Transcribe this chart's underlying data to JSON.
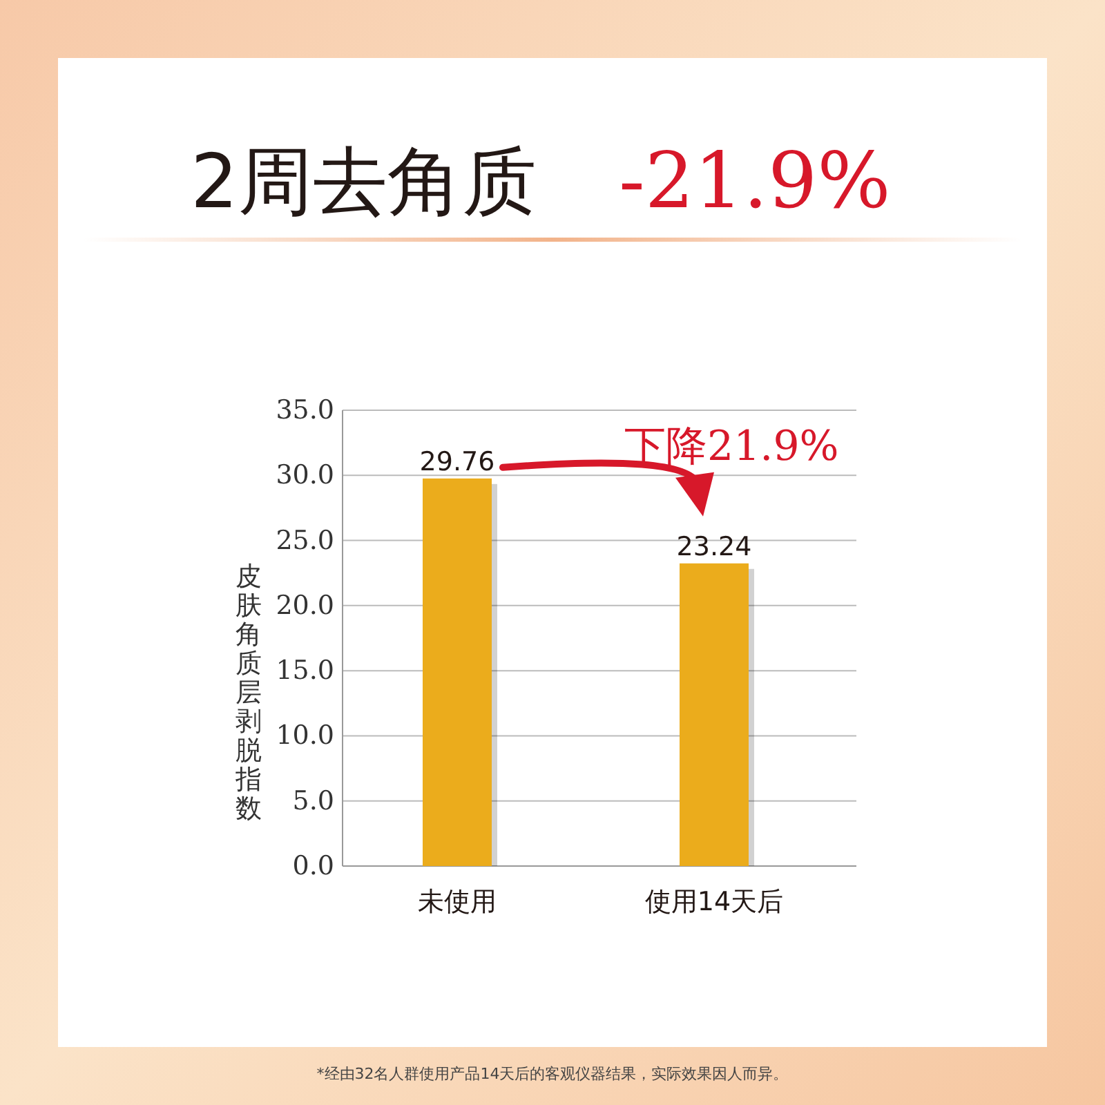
{
  "chart_data": {
    "type": "bar",
    "title": "2周去角质",
    "ylabel": "皮肤角质层剥脱指数",
    "categories": [
      "未使用",
      "使用14天后"
    ],
    "series": [
      {
        "color": "#ebac1c",
        "values": [
          29.76,
          23.24
        ]
      }
    ],
    "ylim": [
      0,
      35
    ],
    "yticks": [
      {
        "value": 0,
        "label": "0.0"
      },
      {
        "value": 5,
        "label": "5.0"
      },
      {
        "value": 10,
        "label": "10.0"
      },
      {
        "value": 15,
        "label": "15.0"
      },
      {
        "value": 20,
        "label": "20.0"
      },
      {
        "value": 25,
        "label": "25.0"
      },
      {
        "value": 30,
        "label": "30.0"
      },
      {
        "value": 35,
        "label": "35.0"
      }
    ],
    "grid": "y",
    "data_labels": true,
    "annotations": [
      "-21.9%",
      "下降21.9%",
      "*经由32名人群使用产品14天后的客观仪器结果，实际效果因人而异。"
    ]
  }
}
